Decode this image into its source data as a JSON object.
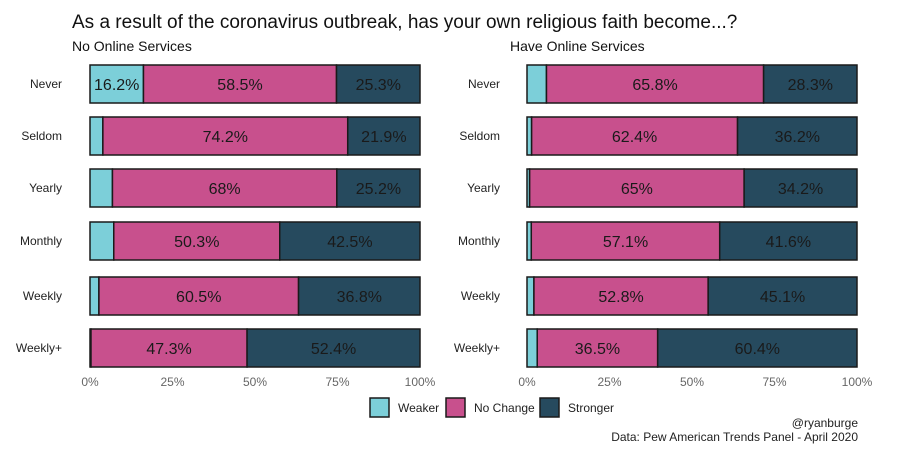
{
  "chart_data": [
    {
      "type": "bar",
      "orientation": "horizontal",
      "stacked": true,
      "title": "No Online Services",
      "categories": [
        "Never",
        "Seldom",
        "Yearly",
        "Monthly",
        "Weekly",
        "Weekly+"
      ],
      "series": [
        {
          "name": "Weaker",
          "values": [
            16.2,
            3.9,
            6.8,
            7.2,
            2.7,
            0.3
          ]
        },
        {
          "name": "No Change",
          "values": [
            58.5,
            74.2,
            68,
            50.3,
            60.5,
            47.3
          ]
        },
        {
          "name": "Stronger",
          "values": [
            25.3,
            21.9,
            25.2,
            42.5,
            36.8,
            52.4
          ]
        }
      ],
      "data_labels": [
        [
          "16.2%",
          "58.5%",
          "25.3%"
        ],
        [
          "",
          "74.2%",
          "21.9%"
        ],
        [
          "",
          "68%",
          "25.2%"
        ],
        [
          "",
          "50.3%",
          "42.5%"
        ],
        [
          "",
          "60.5%",
          "36.8%"
        ],
        [
          "",
          "47.3%",
          "52.4%"
        ]
      ],
      "xlim": [
        0,
        100
      ],
      "xticks": [
        "0%",
        "25%",
        "50%",
        "75%",
        "100%"
      ]
    },
    {
      "type": "bar",
      "orientation": "horizontal",
      "stacked": true,
      "title": "Have Online Services",
      "categories": [
        "Never",
        "Seldom",
        "Yearly",
        "Monthly",
        "Weekly",
        "Weekly+"
      ],
      "series": [
        {
          "name": "Weaker",
          "values": [
            5.9,
            1.4,
            0.8,
            1.3,
            2.1,
            3.1
          ]
        },
        {
          "name": "No Change",
          "values": [
            65.8,
            62.4,
            65,
            57.1,
            52.8,
            36.5
          ]
        },
        {
          "name": "Stronger",
          "values": [
            28.3,
            36.2,
            34.2,
            41.6,
            45.1,
            60.4
          ]
        }
      ],
      "data_labels": [
        [
          "",
          "65.8%",
          "28.3%"
        ],
        [
          "",
          "62.4%",
          "36.2%"
        ],
        [
          "",
          "65%",
          "34.2%"
        ],
        [
          "",
          "57.1%",
          "41.6%"
        ],
        [
          "",
          "52.8%",
          "45.1%"
        ],
        [
          "",
          "36.5%",
          "60.4%"
        ]
      ],
      "xlim": [
        0,
        100
      ],
      "xticks": [
        "0%",
        "25%",
        "50%",
        "75%",
        "100%"
      ]
    }
  ],
  "title": "As a result of the coronavirus outbreak, has your own religious faith become...?",
  "legend": [
    "Weaker",
    "No Change",
    "Stronger"
  ],
  "colors": [
    "#7ccfd9",
    "#c8508d",
    "#264a5e"
  ],
  "credit": "@ryanburge",
  "source": "Data: Pew American Trends Panel - April 2020"
}
